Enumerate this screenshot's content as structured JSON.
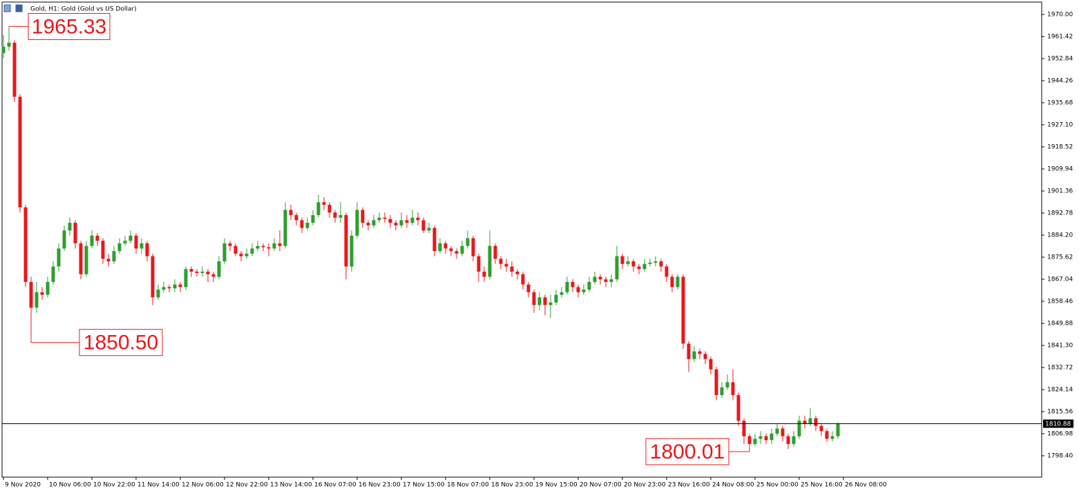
{
  "chart_data": {
    "type": "candlestick",
    "title": "Gold, H1:  Gold (Gold vs US Dollar)",
    "up_color": "#2e9e2e",
    "down_color": "#e8181c",
    "open": [
      1955,
      1957.5,
      1959,
      1938,
      1895,
      1866,
      1856,
      1862,
      1861,
      1866,
      1872,
      1879,
      1886,
      1889,
      1881,
      1869,
      1880,
      1884,
      1882,
      1875,
      1874,
      1878,
      1881,
      1882,
      1884,
      1879,
      1881,
      1876,
      1860,
      1863,
      1864,
      1863.5,
      1865,
      1864,
      1871,
      1870,
      1869.5,
      1870,
      1869,
      1868,
      1874,
      1881,
      1880,
      1877,
      1876,
      1877,
      1879,
      1880,
      1879.5,
      1879,
      1881,
      1880,
      1894,
      1892,
      1890,
      1887,
      1889,
      1892,
      1897,
      1896,
      1893,
      1891,
      1892,
      1872,
      1884,
      1894,
      1889,
      1888,
      1890,
      1891,
      1890.5,
      1889,
      1888,
      1890,
      1889,
      1891,
      1890,
      1886,
      1887,
      1878,
      1881,
      1879,
      1878,
      1877,
      1880,
      1883,
      1876,
      1870,
      1868,
      1880,
      1875,
      1873,
      1872,
      1870,
      1869,
      1865,
      1862,
      1857,
      1860,
      1857,
      1858,
      1861,
      1862,
      1866,
      1864,
      1862,
      1863,
      1866,
      1868,
      1867,
      1866,
      1867,
      1876,
      1873,
      1874,
      1872,
      1871,
      1873,
      1873.5,
      1874,
      1872,
      1868,
      1864,
      1868,
      1842,
      1836,
      1839,
      1838,
      1836,
      1832,
      1822,
      1825,
      1827,
      1822,
      1812,
      1806,
      1803,
      1805,
      1806,
      1804.5,
      1807,
      1809,
      1806,
      1803,
      1806,
      1812,
      1811,
      1813,
      1810,
      1808,
      1805,
      1806
    ],
    "high": [
      1962,
      1965.33,
      1960,
      1939,
      1896,
      1868,
      1866,
      1864,
      1868,
      1874,
      1881,
      1888,
      1891,
      1890,
      1882,
      1882,
      1886,
      1885,
      1883,
      1877,
      1880,
      1883,
      1884,
      1886,
      1885,
      1883,
      1882,
      1877,
      1865,
      1866,
      1865,
      1867,
      1866,
      1872,
      1872,
      1871,
      1872,
      1871,
      1870,
      1876,
      1883,
      1882,
      1881,
      1878,
      1879,
      1881,
      1882,
      1881,
      1881,
      1883,
      1886,
      1897,
      1896,
      1893,
      1891,
      1891,
      1894,
      1900,
      1899,
      1897,
      1894,
      1897,
      1893,
      1886,
      1897,
      1895,
      1890,
      1892,
      1893,
      1893,
      1892,
      1890,
      1893,
      1892,
      1894,
      1893,
      1891,
      1889,
      1888,
      1883,
      1882,
      1880,
      1879,
      1882,
      1886,
      1884,
      1877,
      1872,
      1886,
      1881,
      1876,
      1875,
      1874,
      1871,
      1870,
      1866,
      1863,
      1862,
      1861,
      1861,
      1863,
      1864,
      1868,
      1867,
      1865,
      1865,
      1868,
      1870,
      1869,
      1868,
      1869,
      1880,
      1877,
      1876,
      1875,
      1873,
      1875,
      1875,
      1876,
      1875,
      1873,
      1869,
      1869,
      1869,
      1843,
      1841,
      1840,
      1839,
      1837,
      1833,
      1827,
      1830,
      1832,
      1823,
      1813,
      1807,
      1807,
      1808,
      1807,
      1809,
      1811,
      1810,
      1807,
      1808,
      1814,
      1814,
      1817,
      1814,
      1811,
      1809,
      1808,
      1811.5
    ],
    "low": [
      1953,
      1956,
      1936,
      1893,
      1864,
      1850.5,
      1854,
      1859,
      1860,
      1865,
      1870,
      1878,
      1884,
      1879,
      1867,
      1868,
      1879,
      1880,
      1873,
      1872,
      1873,
      1877,
      1880,
      1881,
      1877,
      1877,
      1874,
      1857,
      1859,
      1862,
      1862,
      1862,
      1862,
      1863,
      1868,
      1868,
      1868,
      1866,
      1866,
      1867,
      1873,
      1878,
      1876,
      1874,
      1875,
      1876,
      1878,
      1878,
      1876,
      1878,
      1878,
      1879,
      1890,
      1888,
      1885,
      1886,
      1888,
      1891,
      1894,
      1891,
      1889,
      1889,
      1867,
      1870,
      1883,
      1887,
      1886,
      1887,
      1889,
      1889,
      1887,
      1886,
      1887,
      1887,
      1888,
      1888,
      1885,
      1885,
      1876,
      1877,
      1877,
      1876,
      1875,
      1876,
      1879,
      1874,
      1866,
      1866,
      1867,
      1873,
      1871,
      1870,
      1868,
      1867,
      1863,
      1860,
      1854,
      1855,
      1853,
      1852,
      1857,
      1860,
      1861,
      1862,
      1860,
      1861,
      1862,
      1865,
      1865,
      1864,
      1864,
      1866,
      1871,
      1872,
      1870,
      1869,
      1870,
      1872,
      1872,
      1870,
      1866,
      1862,
      1863,
      1840,
      1831,
      1835,
      1836,
      1834,
      1830,
      1820,
      1821,
      1824,
      1820,
      1810,
      1803,
      1800.01,
      1802,
      1803,
      1803,
      1803,
      1806,
      1804,
      1801,
      1802,
      1805,
      1809,
      1810,
      1808,
      1806,
      1804,
      1804,
      1805
    ],
    "close": [
      1957.5,
      1959,
      1938,
      1895,
      1866,
      1856,
      1862,
      1861,
      1866,
      1872,
      1879,
      1886,
      1889,
      1881,
      1869,
      1880,
      1884,
      1882,
      1875,
      1874,
      1878,
      1881,
      1882,
      1884,
      1879,
      1881,
      1876,
      1860,
      1863,
      1864,
      1863.5,
      1865,
      1864,
      1871,
      1870,
      1869.5,
      1870,
      1869,
      1868,
      1874,
      1881,
      1880,
      1877,
      1876,
      1877,
      1879,
      1880,
      1879.5,
      1879,
      1881,
      1880,
      1894,
      1892,
      1890,
      1887,
      1889,
      1892,
      1897,
      1896,
      1893,
      1891,
      1892,
      1872,
      1884,
      1894,
      1889,
      1888,
      1890,
      1891,
      1890.5,
      1889,
      1888,
      1890,
      1889,
      1891,
      1890,
      1886,
      1887,
      1878,
      1881,
      1879,
      1878,
      1877,
      1880,
      1883,
      1876,
      1870,
      1868,
      1880,
      1875,
      1873,
      1872,
      1870,
      1869,
      1865,
      1862,
      1857,
      1860,
      1857,
      1858,
      1861,
      1862,
      1866,
      1864,
      1862,
      1863,
      1866,
      1868,
      1867,
      1866,
      1867,
      1876,
      1873,
      1874,
      1872,
      1871,
      1873,
      1873.5,
      1874,
      1872,
      1868,
      1864,
      1868,
      1842,
      1836,
      1839,
      1838,
      1836,
      1832,
      1822,
      1825,
      1827,
      1822,
      1812,
      1806,
      1803,
      1805,
      1806,
      1804.5,
      1807,
      1809,
      1806,
      1803,
      1806,
      1812,
      1811,
      1813,
      1810,
      1808,
      1805,
      1806,
      1810.88
    ],
    "xlim": [
      -0.25,
      187.875
    ],
    "xticks": [
      {
        "value": 0,
        "label": "9 Nov 2020"
      },
      {
        "value": 8,
        "label": "10 Nov 06:00"
      },
      {
        "value": 16,
        "label": "10 Nov 22:00"
      },
      {
        "value": 24,
        "label": "11 Nov 14:00"
      },
      {
        "value": 32,
        "label": "12 Nov 06:00"
      },
      {
        "value": 40,
        "label": "12 Nov 22:00"
      },
      {
        "value": 48,
        "label": "13 Nov 14:00"
      },
      {
        "value": 56,
        "label": "16 Nov 07:00"
      },
      {
        "value": 64,
        "label": "16 Nov 23:00"
      },
      {
        "value": 72,
        "label": "17 Nov 15:00"
      },
      {
        "value": 80,
        "label": "18 Nov 07:00"
      },
      {
        "value": 88,
        "label": "18 Nov 23:00"
      },
      {
        "value": 96,
        "label": "19 Nov 15:00"
      },
      {
        "value": 104,
        "label": "20 Nov 07:00"
      },
      {
        "value": 112,
        "label": "20 Nov 23:00"
      },
      {
        "value": 120,
        "label": "23 Nov 16:00"
      },
      {
        "value": 128,
        "label": "24 Nov 08:00"
      },
      {
        "value": 136,
        "label": "25 Nov 00:00"
      },
      {
        "value": 144,
        "label": "25 Nov 16:00"
      },
      {
        "value": 152,
        "label": "26 Nov 08:00"
      }
    ],
    "ylim": [
      1790.09,
      1974.83
    ],
    "yticks": [
      {
        "value": 1970,
        "label": "1970.00"
      },
      {
        "value": 1961.42,
        "label": "1961.42"
      },
      {
        "value": 1952.84,
        "label": "1952.84"
      },
      {
        "value": 1944.26,
        "label": "1944.26"
      },
      {
        "value": 1935.68,
        "label": "1935.68"
      },
      {
        "value": 1927.1,
        "label": "1927.10"
      },
      {
        "value": 1918.52,
        "label": "1918.52"
      },
      {
        "value": 1909.94,
        "label": "1909.94"
      },
      {
        "value": 1901.36,
        "label": "1901.36"
      },
      {
        "value": 1892.78,
        "label": "1892.78"
      },
      {
        "value": 1884.2,
        "label": "1884.20"
      },
      {
        "value": 1875.62,
        "label": "1875.62"
      },
      {
        "value": 1867.04,
        "label": "1867.04"
      },
      {
        "value": 1858.46,
        "label": "1858.46"
      },
      {
        "value": 1849.88,
        "label": "1849.88"
      },
      {
        "value": 1841.3,
        "label": "1841.30"
      },
      {
        "value": 1832.72,
        "label": "1832.72"
      },
      {
        "value": 1824.14,
        "label": "1824.14"
      },
      {
        "value": 1815.56,
        "label": "1815.56"
      },
      {
        "value": 1806.98,
        "label": "1806.98"
      },
      {
        "value": 1798.4,
        "label": "1798.40"
      }
    ],
    "last_price": 1810.88,
    "annotations": [
      {
        "index": 1,
        "value": 1965.33
      },
      {
        "index": 5,
        "value": 1850.5,
        "label": "1850.50"
      },
      {
        "index": 135,
        "value": 1800.01
      }
    ]
  }
}
